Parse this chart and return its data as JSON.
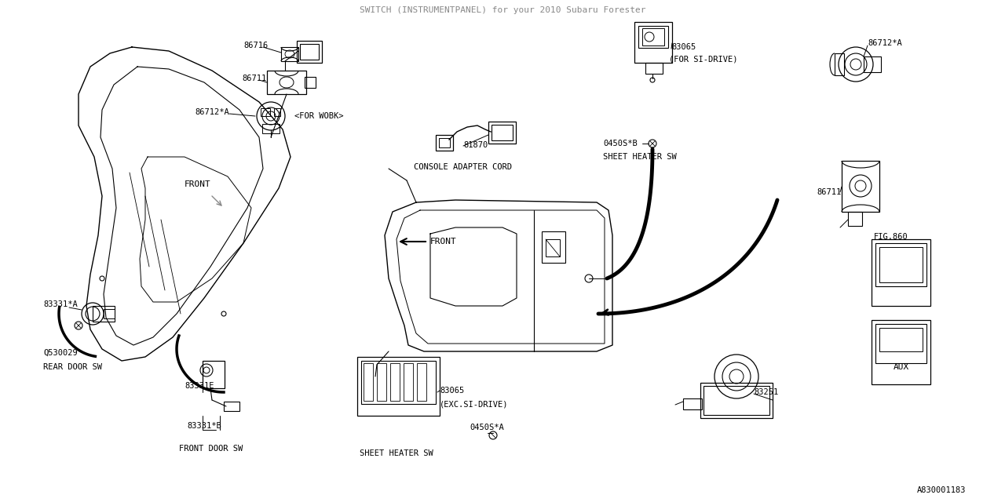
{
  "title": "SWITCH (INSTRUMENTPANEL) for your 2010 Subaru Forester",
  "bg_color": "#FFFFFF",
  "lc": "#000000",
  "tc": "#000000",
  "ff": "monospace",
  "diagram_id": "A830001183",
  "label_86716": "86716",
  "label_86711": "86711",
  "label_86712A": "86712*A",
  "label_FOR_WOBK": "<FOR WOBK>",
  "label_81870": "81870",
  "label_CAC": "CONSOLE ADAPTER CORD",
  "label_83065_si": "83065",
  "label_FOR_SI": "(FOR SI-DRIVE)",
  "label_0450SB": "0450S*B",
  "label_SHEET_TOP": "SHEET HEATER SW",
  "label_86712A_r": "86712*A",
  "label_86711_r": "86711",
  "label_FIG860": "FIG.860",
  "label_83331A": "83331*A",
  "label_Q530029": "Q530029",
  "label_REAR_SW": "REAR DOOR SW",
  "label_83331E": "83331E",
  "label_83331B": "83331*B",
  "label_FRONT_SW": "FRONT DOOR SW",
  "label_83065_exc": "83065",
  "label_EXC_SI": "(EXC.SI-DRIVE)",
  "label_0450SA": "0450S*A",
  "label_SHEET_BOT": "SHEET HEATER SW",
  "label_83251": "83251",
  "label_AUX": "AUX",
  "label_FRONT_L": "FRONT",
  "label_FRONT_C": "FRONT"
}
